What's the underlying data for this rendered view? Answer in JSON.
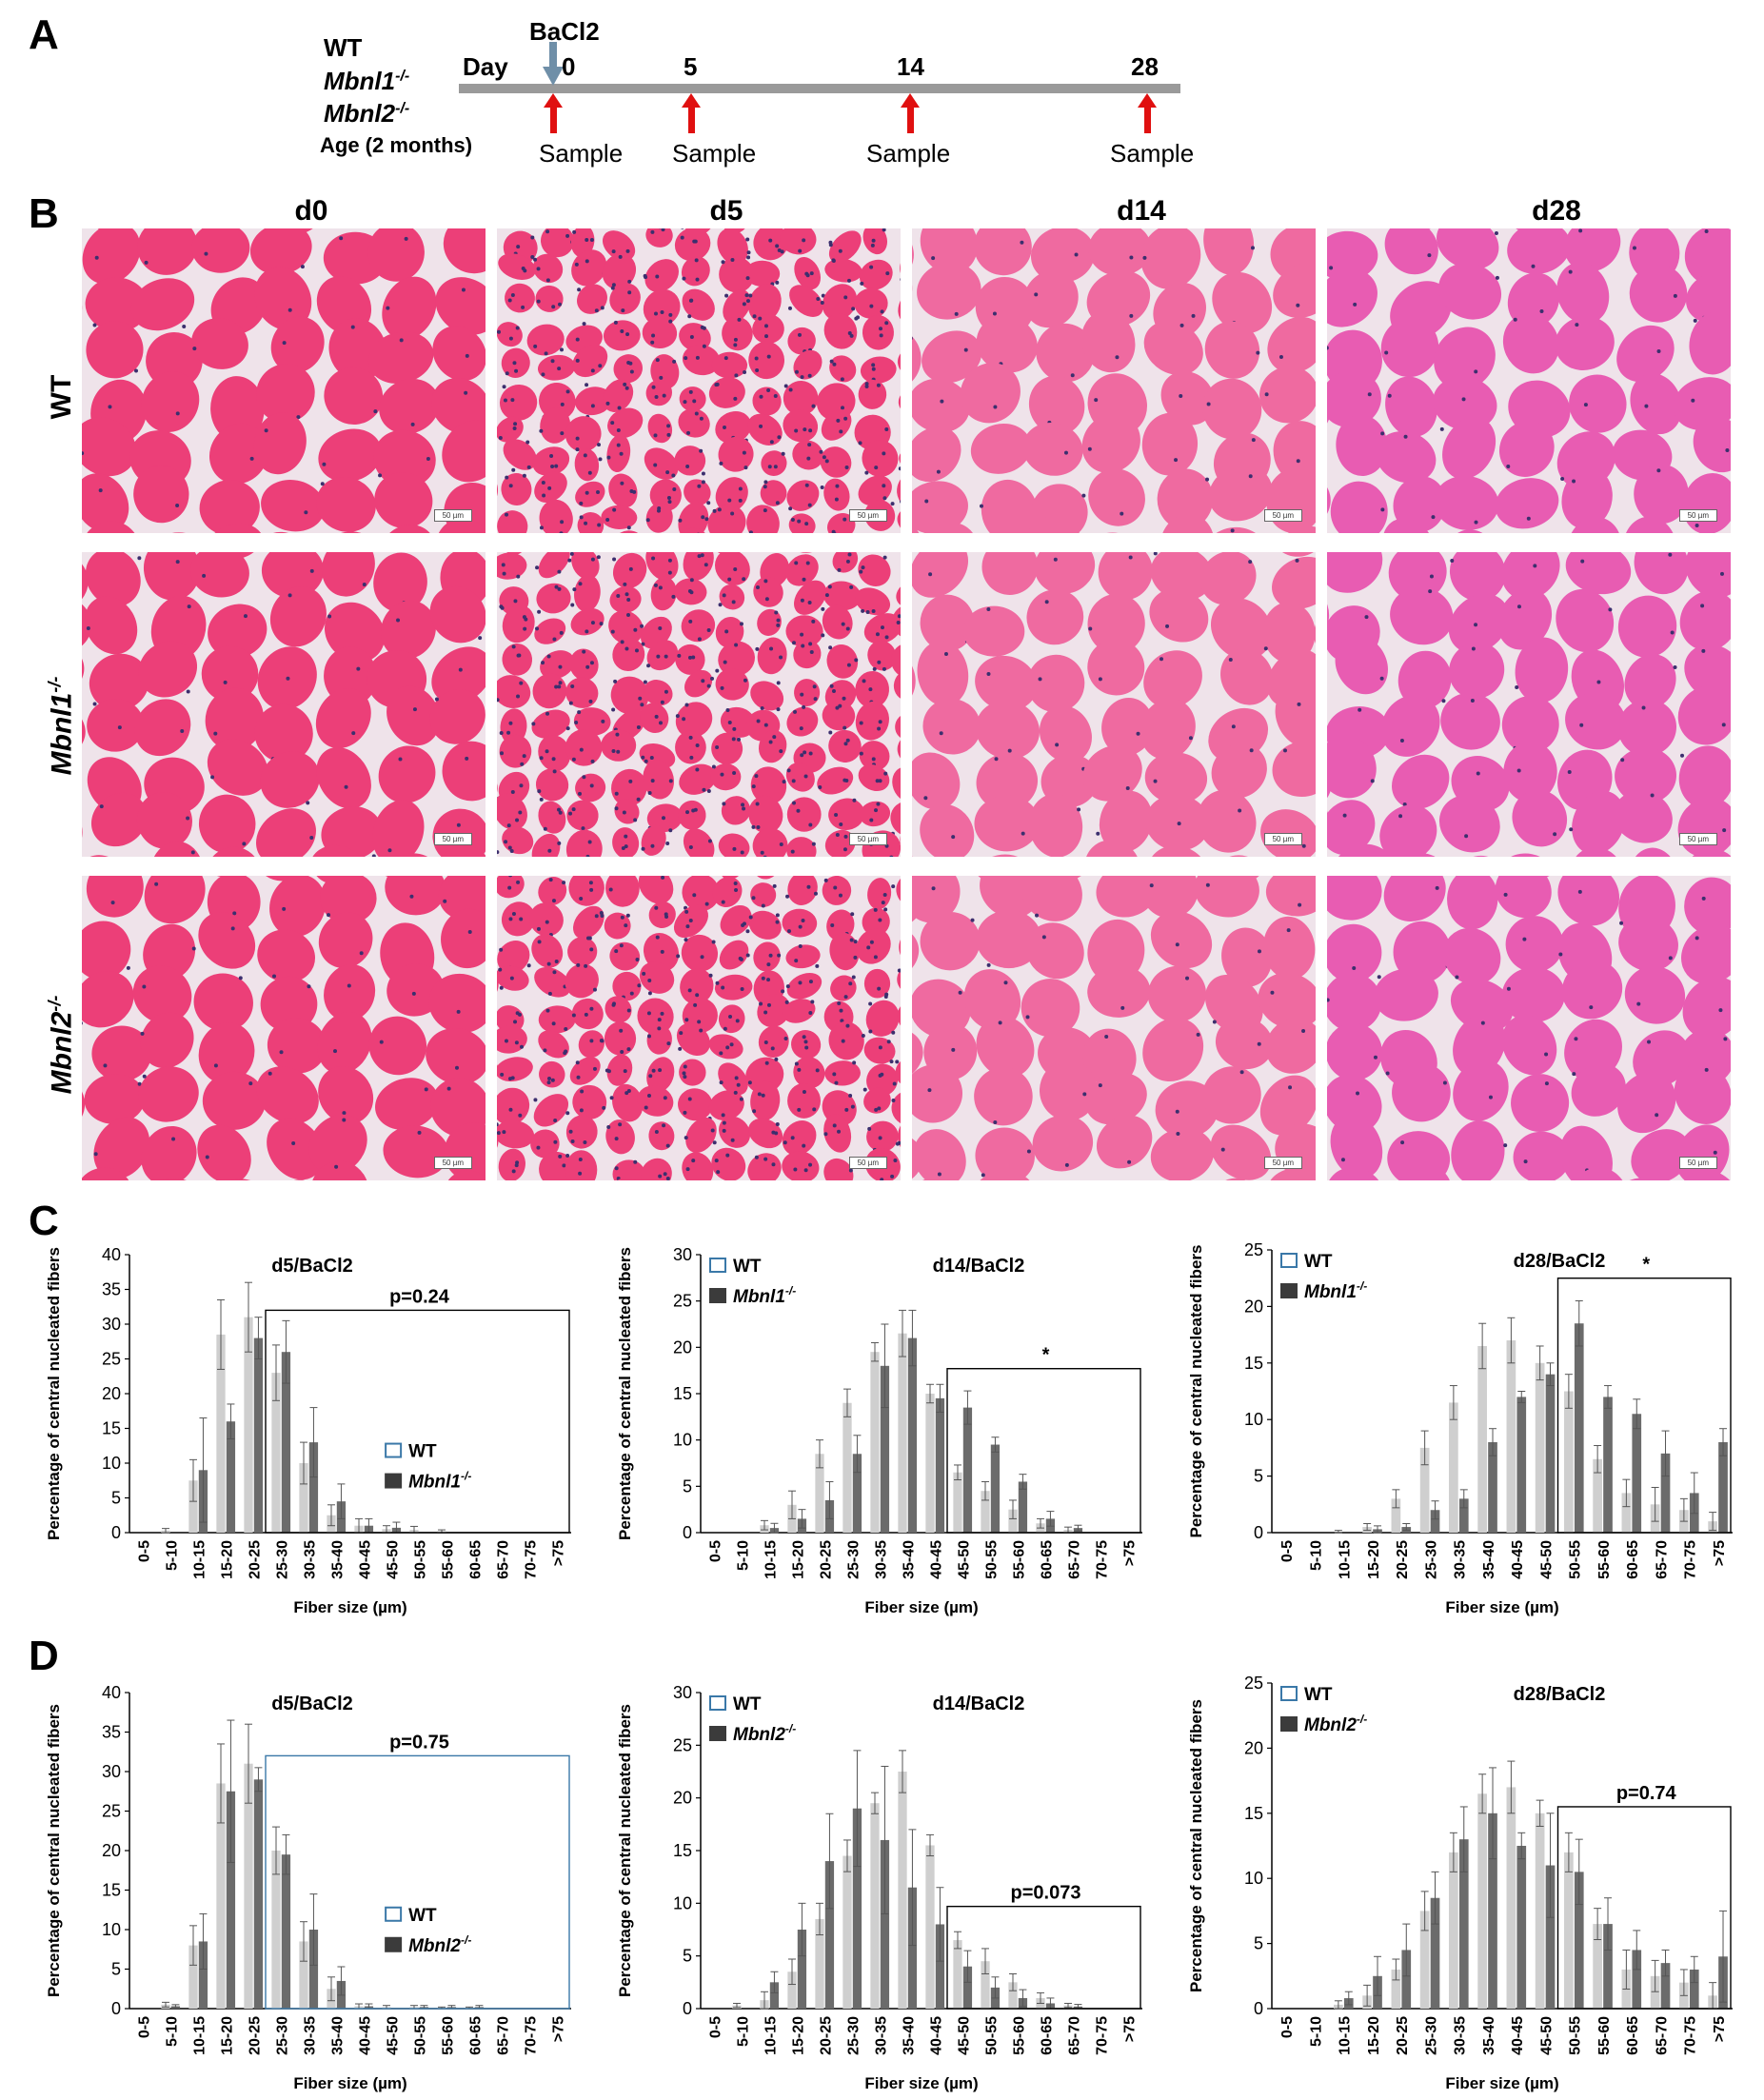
{
  "panels": {
    "A": "A",
    "B": "B",
    "C": "C",
    "D": "D"
  },
  "timeline": {
    "genotypes": [
      "WT",
      "Mbnl1",
      "Mbnl2"
    ],
    "genotype_sup": "-/-",
    "age_label": "Age (2 months)",
    "day_label": "Day",
    "treatment": "BaCl2",
    "days": [
      "0",
      "5",
      "14",
      "28"
    ],
    "sample_label": "Sample",
    "colors": {
      "axis": "#9a9a9a",
      "arrow": "#e01010",
      "injection": "#6f8fa8"
    }
  },
  "histology": {
    "columns": [
      "d0",
      "d5",
      "d14",
      "d28"
    ],
    "rows": [
      {
        "name": "WT",
        "sup": ""
      },
      {
        "name": "Mbnl1",
        "sup": "-/-"
      },
      {
        "name": "Mbnl2",
        "sup": "-/-"
      }
    ],
    "scale_bar": "50 µm",
    "colors": {
      "fiber": "#ec3f78",
      "fiber_d14": "#ef6aa0",
      "fiber_d28": "#e85cb2",
      "interstitium": "#efe3ea",
      "nuclei": "#3c2f6e"
    }
  },
  "chart_data": [
    {
      "id": "C1",
      "type": "bar",
      "title": "d5/BaCl2",
      "xlabel": "Fiber size (µm)",
      "ylabel": "Percentage of central nucleated fibers",
      "categories": [
        "0-5",
        "5-10",
        "10-15",
        "15-20",
        "20-25",
        "25-30",
        "30-35",
        "35-40",
        "40-45",
        "45-50",
        "50-55",
        "55-60",
        "60-65",
        "65-70",
        "70-75",
        ">75"
      ],
      "ylim": [
        0,
        40
      ],
      "yticks": [
        0,
        5,
        10,
        15,
        20,
        25,
        30,
        35,
        40
      ],
      "series": [
        {
          "name": "WT",
          "values": [
            0,
            0.3,
            7.5,
            28.5,
            31,
            23,
            10,
            2.5,
            1,
            0.5,
            0.4,
            0.2,
            0,
            0,
            0,
            0
          ],
          "errors": [
            0,
            0.3,
            3,
            5,
            5,
            4,
            3,
            1.5,
            1,
            0.5,
            0.5,
            0.2,
            0,
            0,
            0,
            0
          ]
        },
        {
          "name": "Mbnl1",
          "sup": "-/-",
          "values": [
            0,
            0,
            9,
            16,
            28,
            26,
            13,
            4.5,
            1,
            0.7,
            0,
            0,
            0,
            0,
            0,
            0
          ],
          "errors": [
            0,
            0,
            7.5,
            2.5,
            3,
            4.5,
            5,
            2.5,
            1,
            0.8,
            0,
            0,
            0,
            0,
            0,
            0
          ]
        }
      ],
      "legend": "bottom-right",
      "annotation": "p=0.24",
      "box_from": 5,
      "legend_title_pos": "mid"
    },
    {
      "id": "C2",
      "type": "bar",
      "title": "d14/BaCl2",
      "xlabel": "Fiber size (µm)",
      "ylabel": "Percentage of central nucleated fibers",
      "categories": [
        "0-5",
        "5-10",
        "10-15",
        "15-20",
        "20-25",
        "25-30",
        "30-35",
        "35-40",
        "40-45",
        "45-50",
        "50-55",
        "55-60",
        "60-65",
        "65-70",
        "70-75",
        ">75"
      ],
      "ylim": [
        0,
        30
      ],
      "yticks": [
        0,
        5,
        10,
        15,
        20,
        25,
        30
      ],
      "series": [
        {
          "name": "WT",
          "values": [
            0,
            0,
            0.8,
            3,
            8.5,
            14,
            19.5,
            21.5,
            15,
            6.5,
            4.5,
            2.5,
            1,
            0.3,
            0,
            0
          ],
          "errors": [
            0,
            0,
            0.5,
            1.5,
            1.5,
            1.5,
            1,
            2.5,
            1,
            0.8,
            1,
            1,
            0.5,
            0.3,
            0,
            0
          ]
        },
        {
          "name": "Mbnl1",
          "sup": "-/-",
          "values": [
            0,
            0,
            0.5,
            1.5,
            3.5,
            8.5,
            18,
            21,
            14.5,
            13.5,
            9.5,
            5.5,
            1.5,
            0.5,
            0,
            0
          ],
          "errors": [
            0,
            0,
            0.5,
            1,
            2,
            2,
            4.5,
            3,
            1.5,
            1.8,
            0.8,
            0.8,
            0.8,
            0.3,
            0,
            0
          ]
        }
      ],
      "legend": "top-left",
      "annotation": "*",
      "box_from": 9
    },
    {
      "id": "C3",
      "type": "bar",
      "title": "d28/BaCl2",
      "xlabel": "Fiber size (µm)",
      "ylabel": "Percentage of central nucleated fibers",
      "categories": [
        "0-5",
        "5-10",
        "10-15",
        "15-20",
        "20-25",
        "25-30",
        "30-35",
        "35-40",
        "40-45",
        "45-50",
        "50-55",
        "55-60",
        "60-65",
        "65-70",
        "70-75",
        ">75"
      ],
      "ylim": [
        0,
        25
      ],
      "yticks": [
        0,
        5,
        10,
        15,
        20,
        25
      ],
      "series": [
        {
          "name": "WT",
          "values": [
            0,
            0,
            0,
            0.5,
            3,
            7.5,
            11.5,
            16.5,
            17,
            15,
            12.5,
            6.5,
            3.5,
            2.5,
            2,
            1
          ],
          "errors": [
            0,
            0,
            0.2,
            0.3,
            0.8,
            1.5,
            1.5,
            2,
            2,
            1.5,
            1.5,
            1.2,
            1.2,
            1.5,
            1,
            0.8
          ]
        },
        {
          "name": "Mbnl1",
          "sup": "-/-",
          "values": [
            0,
            0,
            0,
            0.3,
            0.5,
            2,
            3,
            8,
            12,
            14,
            18.5,
            12,
            10.5,
            7,
            3.5,
            8
          ],
          "errors": [
            0,
            0,
            0,
            0.3,
            0.3,
            0.8,
            0.8,
            1.2,
            0.5,
            1,
            2,
            1,
            1.3,
            2,
            1.8,
            1.2
          ]
        }
      ],
      "legend": "top-left",
      "annotation": "*",
      "box_from": 10
    },
    {
      "id": "D1",
      "type": "bar",
      "title": "d5/BaCl2",
      "xlabel": "Fiber size (µm)",
      "ylabel": "Percentage of central nucleated fibers",
      "categories": [
        "0-5",
        "5-10",
        "10-15",
        "15-20",
        "20-25",
        "25-30",
        "30-35",
        "35-40",
        "40-45",
        "45-50",
        "50-55",
        "55-60",
        "60-65",
        "65-70",
        "70-75",
        ">75"
      ],
      "ylim": [
        0,
        40
      ],
      "yticks": [
        0,
        5,
        10,
        15,
        20,
        25,
        30,
        35,
        40
      ],
      "series": [
        {
          "name": "WT",
          "values": [
            0,
            0.5,
            8,
            28.5,
            31,
            20,
            8.5,
            2.5,
            0.3,
            0.2,
            0.2,
            0.1,
            0.1,
            0,
            0,
            0
          ],
          "errors": [
            0,
            0.3,
            2.5,
            5,
            5,
            3,
            2.5,
            1.5,
            0.3,
            0.2,
            0.2,
            0.1,
            0.1,
            0,
            0,
            0
          ]
        },
        {
          "name": "Mbnl2",
          "sup": "-/-",
          "values": [
            0,
            0.3,
            8.5,
            27.5,
            29,
            19.5,
            10,
            3.5,
            0.3,
            0,
            0.2,
            0.2,
            0.2,
            0,
            0,
            0
          ],
          "errors": [
            0,
            0.2,
            3.5,
            9,
            1.5,
            2.5,
            4.5,
            1.8,
            0.3,
            0,
            0.2,
            0.2,
            0.2,
            0,
            0,
            0
          ]
        }
      ],
      "legend": "bottom-right",
      "annotation": "p=0.75",
      "box_from": 5,
      "box_color": "#3a78a8"
    },
    {
      "id": "D2",
      "type": "bar",
      "title": "d14/BaCl2",
      "xlabel": "Fiber size (µm)",
      "ylabel": "Percentage of central nucleated fibers",
      "categories": [
        "0-5",
        "5-10",
        "10-15",
        "15-20",
        "20-25",
        "25-30",
        "30-35",
        "35-40",
        "40-45",
        "45-50",
        "50-55",
        "55-60",
        "60-65",
        "65-70",
        "70-75",
        ">75"
      ],
      "ylim": [
        0,
        30
      ],
      "yticks": [
        0,
        5,
        10,
        15,
        20,
        25,
        30
      ],
      "series": [
        {
          "name": "WT",
          "values": [
            0,
            0.3,
            0.8,
            3.5,
            8.5,
            14.5,
            19.5,
            22.5,
            15.5,
            6.5,
            4.5,
            2.5,
            1,
            0.3,
            0,
            0
          ],
          "errors": [
            0,
            0.2,
            0.8,
            1.2,
            1.5,
            1.5,
            1,
            2,
            1,
            0.8,
            1.2,
            0.8,
            0.5,
            0.2,
            0,
            0
          ]
        },
        {
          "name": "Mbnl2",
          "sup": "-/-",
          "values": [
            0,
            0,
            2.5,
            7.5,
            14,
            19,
            16,
            11.5,
            8,
            4,
            2,
            1,
            0.5,
            0.2,
            0,
            0
          ],
          "errors": [
            0,
            0,
            1,
            2.5,
            4.5,
            5.5,
            7,
            5.5,
            3.5,
            1.5,
            1,
            0.8,
            0.5,
            0.2,
            0,
            0
          ]
        }
      ],
      "legend": "top-left",
      "annotation": "p=0.073",
      "box_from": 9
    },
    {
      "id": "D3",
      "type": "bar",
      "title": "d28/BaCl2",
      "xlabel": "Fiber size (µm)",
      "ylabel": "Percentage of central nucleated fibers",
      "categories": [
        "0-5",
        "5-10",
        "10-15",
        "15-20",
        "20-25",
        "25-30",
        "30-35",
        "35-40",
        "40-45",
        "45-50",
        "50-55",
        "55-60",
        "60-65",
        "65-70",
        "70-75",
        ">75"
      ],
      "ylim": [
        0,
        25
      ],
      "yticks": [
        0,
        5,
        10,
        15,
        20,
        25
      ],
      "series": [
        {
          "name": "WT",
          "values": [
            0,
            0,
            0.3,
            1,
            3,
            7.5,
            12,
            16.5,
            17,
            15,
            12,
            6.5,
            3,
            2.5,
            2,
            1
          ],
          "errors": [
            0,
            0,
            0.3,
            0.8,
            0.8,
            1.5,
            1.5,
            1.5,
            2,
            1,
            1.5,
            1.2,
            1.5,
            1.2,
            1,
            1
          ]
        },
        {
          "name": "Mbnl2",
          "sup": "-/-",
          "values": [
            0,
            0,
            0.8,
            2.5,
            4.5,
            8.5,
            13,
            15,
            12.5,
            11,
            10.5,
            6.5,
            4.5,
            3.5,
            3,
            4
          ],
          "errors": [
            0,
            0,
            0.5,
            1.5,
            2,
            2,
            2.5,
            3.5,
            1,
            4,
            2.5,
            2,
            1.5,
            1,
            1,
            3.5
          ]
        }
      ],
      "legend": "top-left",
      "annotation": "p=0.74",
      "box_from": 10
    }
  ],
  "chart_colors": {
    "wt": "#cfcfcf",
    "mut": "#6b6b6b",
    "legend_wt_border": "#3a78a8",
    "legend_mut": "#3b3b3b"
  }
}
